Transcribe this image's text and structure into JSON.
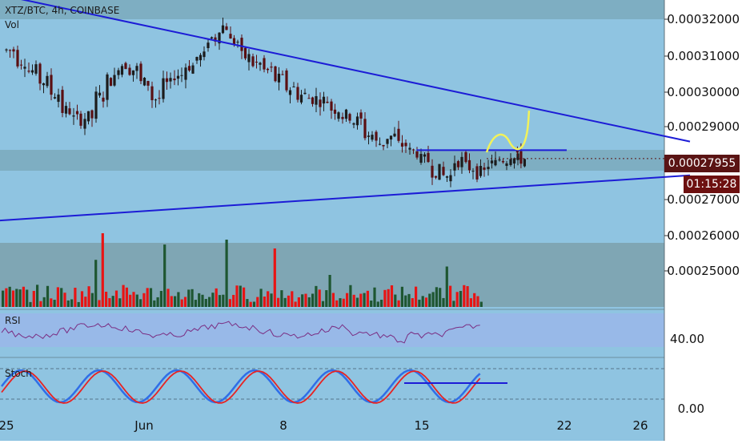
{
  "chart_data": {
    "type": "candlestick",
    "title": "XTZ/BTC, 4h, COINBASE",
    "volume_label": "Vol",
    "price_axis_ticks": [
      "0.00032000",
      "0.00031000",
      "0.00030000",
      "0.00029000",
      "0.00027000",
      "0.00026000",
      "0.00025000"
    ],
    "price_ylim": [
      0.000242,
      0.0003245
    ],
    "last_price": "0.00027955",
    "countdown": "01:15:28",
    "x_ticks": [
      "25",
      "Jun",
      "8",
      "15",
      "22",
      "26"
    ],
    "drawings": {
      "descending_trendline": [
        [
          -0.5,
          0.0003274
        ],
        [
          30.5,
          0.0002845
        ]
      ],
      "ascending_trendline": [
        [
          -0.5,
          0.0002615
        ],
        [
          30.5,
          0.0002747
        ]
      ],
      "resistance_line": [
        [
          18.3,
          0.000282
        ],
        [
          25,
          0.000282
        ]
      ],
      "projection_color": "#f2f25a"
    },
    "candles": [
      [
        0,
        0.000311
      ],
      [
        0.5,
        0.000308
      ],
      [
        1,
        0.000305
      ],
      [
        1.5,
        0.000302
      ],
      [
        2,
        0.0002985
      ],
      [
        2.5,
        0.0002935
      ],
      [
        3,
        0.000291
      ],
      [
        3.5,
        0.0002915
      ],
      [
        4,
        0.0002975
      ],
      [
        4.5,
        0.0003025
      ],
      [
        5,
        0.000307
      ],
      [
        5.5,
        0.0003055
      ],
      [
        6,
        0.0003015
      ],
      [
        6.5,
        0.000297
      ],
      [
        7,
        0.000301
      ],
      [
        7.5,
        0.000304
      ],
      [
        8,
        0.0003065
      ],
      [
        8.5,
        0.000309
      ],
      [
        9,
        0.0003145
      ],
      [
        9.5,
        0.000318
      ],
      [
        10,
        0.0003135
      ],
      [
        10.5,
        0.000309
      ],
      [
        11,
        0.000307
      ],
      [
        11.5,
        0.000305
      ],
      [
        12,
        0.0003025
      ],
      [
        12.5,
        0.0003
      ],
      [
        13,
        0.000298
      ],
      [
        13.5,
        0.000297
      ],
      [
        14,
        0.0002965
      ],
      [
        14.5,
        0.000294
      ],
      [
        15,
        0.000292
      ],
      [
        15.5,
        0.0002905
      ],
      [
        16,
        0.0002865
      ],
      [
        16.5,
        0.000284
      ],
      [
        17,
        0.000286
      ],
      [
        17.5,
        0.0002835
      ],
      [
        18,
        0.0002815
      ],
      [
        18.5,
        0.000279
      ],
      [
        19,
        0.000276
      ],
      [
        19.5,
        0.0002745
      ],
      [
        20,
        0.000279
      ],
      [
        20.5,
        0.000277
      ],
      [
        21,
        0.0002755
      ],
      [
        21.5,
        0.000278
      ],
      [
        22,
        0.0002795
      ],
      [
        22.5,
        0.000281
      ],
      [
        22.8,
        0.0002795
      ]
    ],
    "volume_up_color": "#1e5631",
    "volume_down_color": "#e81414",
    "rsi": {
      "label": "RSI",
      "tick": "40.00"
    },
    "stoch": {
      "label": "Stoch",
      "tick": "0.00",
      "series": [
        {
          "color": "#2f6ee8"
        },
        {
          "color": "#e82222"
        }
      ]
    }
  }
}
